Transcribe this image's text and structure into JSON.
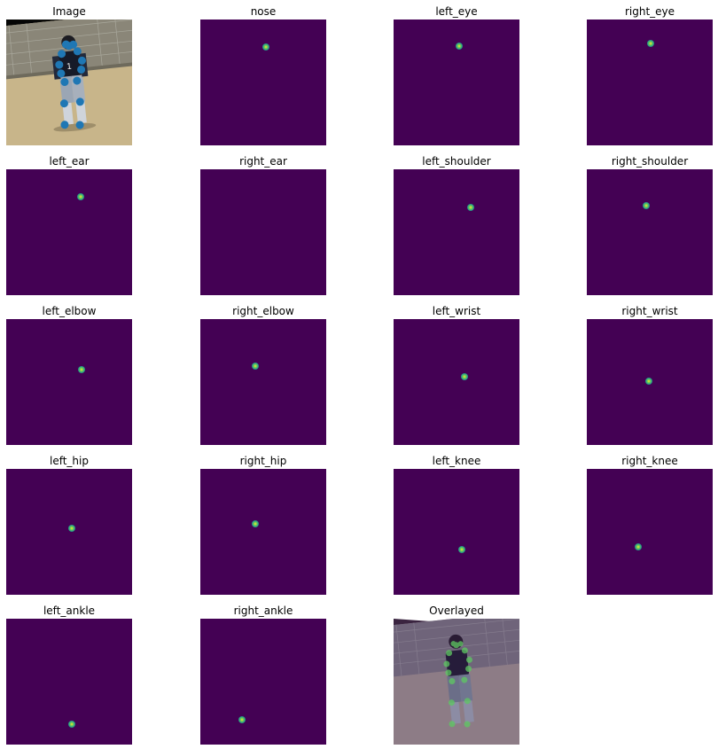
{
  "figure": {
    "image_title": "Image",
    "overlay_title": "Overlayed",
    "panels": [
      {
        "label": "nose",
        "peak": [
          0.52,
          0.22
        ]
      },
      {
        "label": "left_eye",
        "peak": [
          0.52,
          0.21
        ]
      },
      {
        "label": "right_eye",
        "peak": [
          0.51,
          0.19
        ]
      },
      {
        "label": "left_ear",
        "peak": [
          0.59,
          0.22
        ]
      },
      {
        "label": "right_ear",
        "peak": null
      },
      {
        "label": "left_shoulder",
        "peak": [
          0.61,
          0.3
        ]
      },
      {
        "label": "right_shoulder",
        "peak": [
          0.47,
          0.29
        ]
      },
      {
        "label": "left_elbow",
        "peak": [
          0.6,
          0.4
        ]
      },
      {
        "label": "right_elbow",
        "peak": [
          0.44,
          0.37
        ]
      },
      {
        "label": "left_wrist",
        "peak": [
          0.56,
          0.46
        ]
      },
      {
        "label": "right_wrist",
        "peak": [
          0.49,
          0.49
        ]
      },
      {
        "label": "left_hip",
        "peak": [
          0.52,
          0.47
        ]
      },
      {
        "label": "right_hip",
        "peak": [
          0.44,
          0.44
        ]
      },
      {
        "label": "left_knee",
        "peak": [
          0.54,
          0.64
        ]
      },
      {
        "label": "right_knee",
        "peak": [
          0.41,
          0.62
        ]
      },
      {
        "label": "left_ankle",
        "peak": [
          0.52,
          0.84
        ]
      },
      {
        "label": "right_ankle",
        "peak": [
          0.33,
          0.8
        ]
      }
    ],
    "colors": {
      "heatmap_background": "#440154",
      "heatmap_peak": "#fde725",
      "keypoint_marker": "#1f77b4"
    }
  }
}
